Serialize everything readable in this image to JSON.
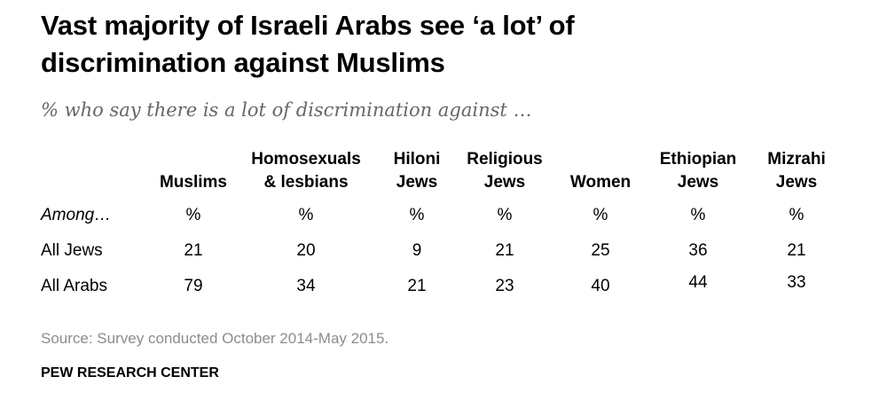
{
  "title_line1": "Vast majority of Israeli Arabs see ‘a lot’ of",
  "title_line2": "discrimination against Muslims",
  "subtitle": "% who say there is a lot of discrimination against …",
  "source": "Source: Survey conducted October 2014-May 2015.",
  "org": "PEW RESEARCH CENTER",
  "chart_data": {
    "type": "table",
    "title": "Vast majority of Israeli Arabs see ‘a lot’ of discrimination against Muslims",
    "subtitle": "% who say there is a lot of discrimination against …",
    "stub_header": "Among…",
    "unit_label": "%",
    "columns": [
      {
        "line1": "",
        "line2": "Muslims"
      },
      {
        "line1": "Homosexuals",
        "line2": "& lesbians"
      },
      {
        "line1": "Hiloni",
        "line2": "Jews"
      },
      {
        "line1": "Religious",
        "line2": "Jews"
      },
      {
        "line1": "",
        "line2": "Women"
      },
      {
        "line1": "Ethiopian",
        "line2": "Jews"
      },
      {
        "line1": "Mizrahi",
        "line2": "Jews"
      }
    ],
    "rows": [
      {
        "label": "All Jews",
        "values": [
          21,
          20,
          9,
          21,
          25,
          36,
          21
        ]
      },
      {
        "label": "All Arabs",
        "values": [
          79,
          34,
          21,
          23,
          40,
          44,
          33
        ]
      }
    ]
  }
}
